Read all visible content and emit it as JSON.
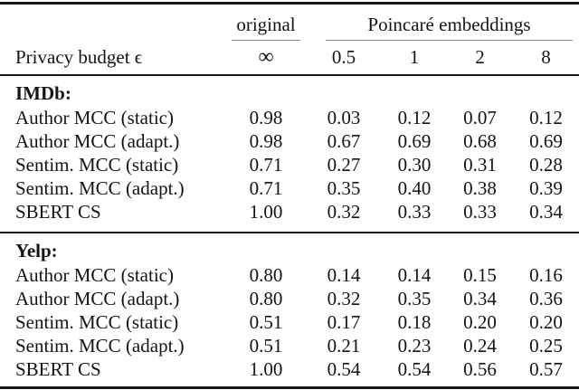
{
  "table": {
    "group_headers": {
      "original": "original",
      "poincare": "Poincaré embeddings"
    },
    "header_row": {
      "label": "Privacy budget ϵ",
      "cols": [
        "∞",
        "0.5",
        "1",
        "2",
        "8"
      ]
    },
    "sections": [
      {
        "title": "IMDb:",
        "rows": [
          {
            "label": "Author MCC (static)",
            "values": [
              "0.98",
              "0.03",
              "0.12",
              "0.07",
              "0.12"
            ]
          },
          {
            "label": "Author MCC (adapt.)",
            "values": [
              "0.98",
              "0.67",
              "0.69",
              "0.68",
              "0.69"
            ]
          },
          {
            "label": "Sentim. MCC (static)",
            "values": [
              "0.71",
              "0.27",
              "0.30",
              "0.31",
              "0.28"
            ]
          },
          {
            "label": "Sentim. MCC (adapt.)",
            "values": [
              "0.71",
              "0.35",
              "0.40",
              "0.38",
              "0.39"
            ]
          },
          {
            "label": "SBERT CS",
            "values": [
              "1.00",
              "0.32",
              "0.33",
              "0.33",
              "0.34"
            ]
          }
        ]
      },
      {
        "title": "Yelp:",
        "rows": [
          {
            "label": "Author MCC (static)",
            "values": [
              "0.80",
              "0.14",
              "0.14",
              "0.15",
              "0.16"
            ]
          },
          {
            "label": "Author MCC (adapt.)",
            "values": [
              "0.80",
              "0.32",
              "0.35",
              "0.34",
              "0.36"
            ]
          },
          {
            "label": "Sentim. MCC (static)",
            "values": [
              "0.51",
              "0.17",
              "0.18",
              "0.20",
              "0.20"
            ]
          },
          {
            "label": "Sentim. MCC (adapt.)",
            "values": [
              "0.51",
              "0.21",
              "0.23",
              "0.24",
              "0.25"
            ]
          },
          {
            "label": "SBERT CS",
            "values": [
              "1.00",
              "0.54",
              "0.54",
              "0.56",
              "0.57"
            ]
          }
        ]
      }
    ],
    "colors": {
      "text": "#141414",
      "rule": "#141414",
      "cmidrule": "#8a8a8a",
      "background": "#ffffff"
    }
  }
}
